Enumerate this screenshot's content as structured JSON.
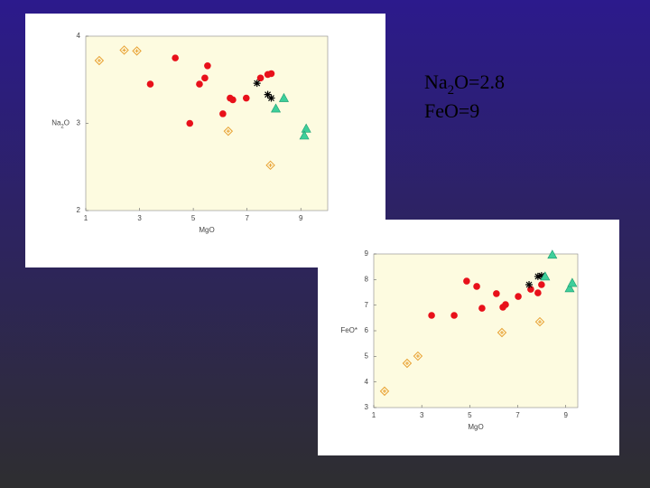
{
  "chart_data": [
    {
      "type": "scatter",
      "xlabel": "MgO",
      "ylabel": [
        "Na",
        "2",
        "O"
      ],
      "xlim": [
        1,
        10
      ],
      "ylim": [
        2,
        4
      ],
      "xticks": [
        1,
        3,
        5,
        7,
        9
      ],
      "yticks": [
        2,
        3,
        4
      ],
      "series": [
        {
          "color": "#e8a030",
          "marker": "diamond",
          "x": [
            1.5,
            2.43,
            2.9,
            6.3,
            7.87
          ],
          "values": [
            3.72,
            3.84,
            3.83,
            2.91,
            2.52
          ]
        },
        {
          "color": "#e8101a",
          "marker": "dot",
          "x": [
            3.4,
            4.33,
            4.87,
            5.23,
            5.43,
            5.53,
            6.1,
            6.37,
            6.47,
            6.97,
            7.5,
            7.77,
            7.9
          ],
          "values": [
            3.45,
            3.75,
            3.0,
            3.45,
            3.52,
            3.66,
            3.11,
            3.29,
            3.27,
            3.29,
            3.52,
            3.56,
            3.57
          ]
        },
        {
          "color": "#000000",
          "marker": "star",
          "x": [
            7.37,
            7.77,
            7.9
          ],
          "values": [
            3.46,
            3.33,
            3.29
          ]
        },
        {
          "color": "#3ecf9a",
          "marker": "triangle",
          "x": [
            8.07,
            8.37,
            9.2,
            9.13
          ],
          "values": [
            3.17,
            3.29,
            2.94,
            2.86
          ]
        }
      ]
    },
    {
      "type": "scatter",
      "xlabel": "MgO",
      "ylabel": [
        "FeO*"
      ],
      "xlim": [
        1,
        9.5
      ],
      "ylim": [
        3,
        9
      ],
      "xticks": [
        1,
        3,
        5,
        7,
        9
      ],
      "yticks": [
        3,
        4,
        5,
        6,
        7,
        8,
        9
      ],
      "series": [
        {
          "color": "#e8a030",
          "marker": "diamond",
          "x": [
            1.45,
            2.39,
            2.84,
            6.34,
            7.92
          ],
          "values": [
            3.64,
            4.73,
            5.01,
            5.93,
            6.35
          ]
        },
        {
          "color": "#e8101a",
          "marker": "dot",
          "x": [
            3.41,
            4.35,
            4.87,
            5.29,
            5.51,
            6.11,
            6.38,
            6.49,
            7.02,
            7.54,
            7.84,
            7.99
          ],
          "values": [
            6.6,
            6.6,
            7.94,
            7.73,
            6.88,
            7.45,
            6.92,
            7.02,
            7.34,
            7.62,
            7.48,
            7.8
          ]
        },
        {
          "color": "#000000",
          "marker": "star",
          "x": [
            7.47,
            7.84,
            7.99
          ],
          "values": [
            7.8,
            8.12,
            8.15
          ]
        },
        {
          "color": "#3ecf9a",
          "marker": "triangle",
          "x": [
            8.44,
            8.14,
            9.16,
            9.27
          ],
          "values": [
            8.97,
            8.12,
            7.66,
            7.87
          ]
        }
      ]
    }
  ],
  "annotations": [
    [
      "Na",
      "2",
      "O=2.8"
    ],
    [
      "FeO=9"
    ]
  ]
}
